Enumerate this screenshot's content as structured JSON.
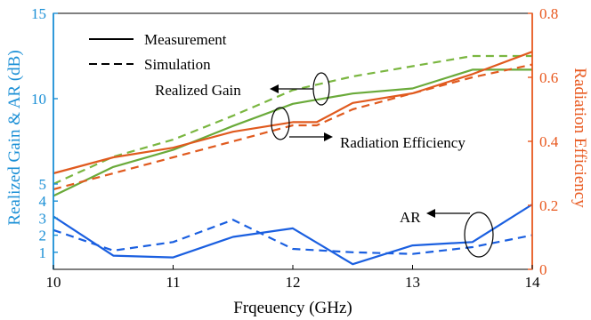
{
  "chart_data": {
    "type": "line",
    "xlabel": "Frqeuency (GHz)",
    "ylabel_left": "Realized Gain & AR (dB)",
    "ylabel_right": "Radiation Efficiency",
    "xlim": [
      10,
      14
    ],
    "ylim_left": [
      0,
      15
    ],
    "ylim_right": [
      0,
      0.8
    ],
    "xticks": [
      "10",
      "11",
      "12",
      "13",
      "14"
    ],
    "yticks_left": [
      "1",
      "2",
      "3",
      "4",
      "5",
      "10",
      "15"
    ],
    "yticks_right": [
      "0",
      "0.2",
      "0.4",
      "0.6",
      "0.8"
    ],
    "legend": [
      {
        "label": "Measurement",
        "style": "solid"
      },
      {
        "label": "Simulation",
        "style": "dashed"
      }
    ],
    "annotations": {
      "gain": "Realized Gain",
      "efficiency": "Radiation Efficiency",
      "ar": "AR"
    },
    "colors": {
      "left_axis": "#1a8fd6",
      "right_axis": "#e8581e",
      "gain": "#6aaa3a",
      "gain_sim": "#7ab640",
      "efficiency": "#e05a1e",
      "ar": "#1a5fe0"
    },
    "series": [
      {
        "key": "gain_meas",
        "axis": "left",
        "color_key": "gain",
        "dash": false,
        "x": [
          10,
          10.5,
          11,
          11.5,
          12,
          12.5,
          13,
          13.5,
          14
        ],
        "y": [
          4.3,
          6.0,
          7.0,
          8.4,
          9.7,
          10.3,
          10.6,
          11.7,
          11.7
        ]
      },
      {
        "key": "gain_sim",
        "axis": "left",
        "color_key": "gain_sim",
        "dash": true,
        "x": [
          10,
          10.5,
          11,
          11.5,
          12,
          12.5,
          13,
          13.5,
          14
        ],
        "y": [
          5.0,
          6.6,
          7.6,
          9.0,
          10.5,
          11.3,
          11.9,
          12.5,
          12.5
        ]
      },
      {
        "key": "eff_meas",
        "axis": "right",
        "color_key": "efficiency",
        "dash": false,
        "x": [
          10,
          10.5,
          11,
          11.5,
          12,
          12.2,
          12.5,
          13,
          13.5,
          14
        ],
        "y": [
          0.3,
          0.35,
          0.38,
          0.43,
          0.46,
          0.46,
          0.52,
          0.55,
          0.61,
          0.68
        ]
      },
      {
        "key": "eff_sim",
        "axis": "right",
        "color_key": "efficiency",
        "dash": true,
        "x": [
          10,
          10.5,
          11,
          11.5,
          12,
          12.2,
          12.5,
          13,
          13.5,
          14
        ],
        "y": [
          0.25,
          0.3,
          0.35,
          0.4,
          0.45,
          0.45,
          0.5,
          0.55,
          0.6,
          0.64
        ]
      },
      {
        "key": "ar_meas",
        "axis": "left",
        "color_key": "ar",
        "dash": false,
        "x": [
          10,
          10.5,
          11,
          11.5,
          12,
          12.5,
          13,
          13.5,
          14
        ],
        "y": [
          3.1,
          0.8,
          0.7,
          1.9,
          2.4,
          0.3,
          1.4,
          1.6,
          3.8
        ]
      },
      {
        "key": "ar_sim",
        "axis": "left",
        "color_key": "ar",
        "dash": true,
        "x": [
          10,
          10.5,
          11,
          11.5,
          12,
          12.5,
          13,
          13.5,
          14
        ],
        "y": [
          2.3,
          1.1,
          1.6,
          2.9,
          1.2,
          1.0,
          0.9,
          1.3,
          2.0
        ]
      }
    ]
  }
}
